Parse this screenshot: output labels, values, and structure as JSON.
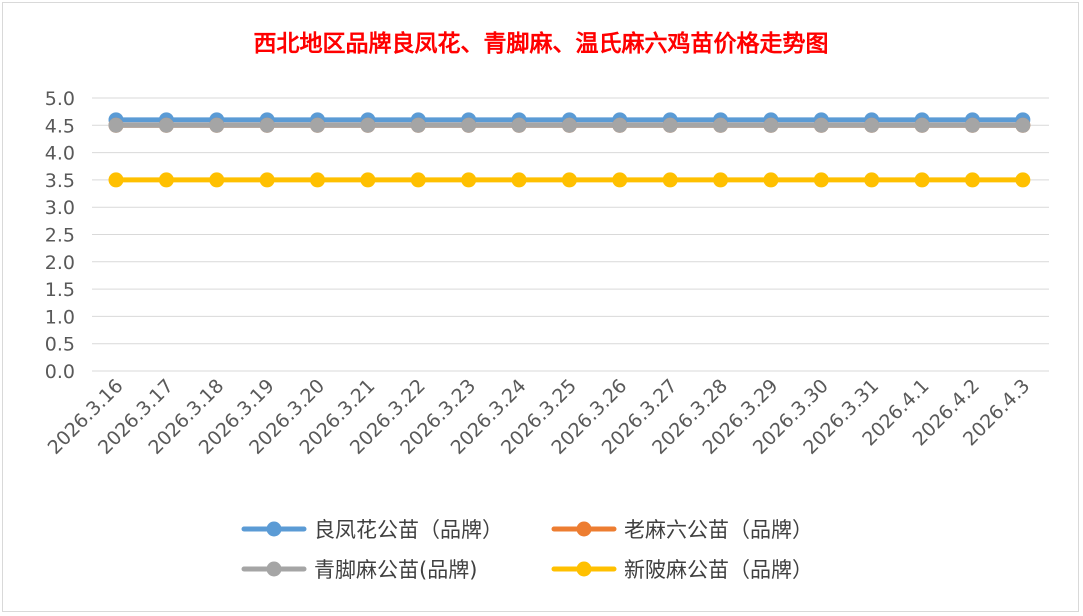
{
  "chart_data": {
    "type": "line",
    "title": "西北地区品牌良凤花、青脚麻、温氏麻六鸡苗价格走势图",
    "xlabel": "",
    "ylabel": "",
    "ylim": [
      0,
      5
    ],
    "ytick_labels": [
      "5.0",
      "4.5",
      "4.0",
      "3.5",
      "3.0",
      "2.5",
      "2.0",
      "1.5",
      "1.0",
      "0.5",
      "0.0"
    ],
    "grid": true,
    "legend_position": "bottom",
    "categories": [
      "2026.3.16",
      "2026.3.17",
      "2026.3.18",
      "2026.3.19",
      "2026.3.20",
      "2026.3.21",
      "2026.3.22",
      "2026.3.23",
      "2026.3.24",
      "2026.3.25",
      "2026.3.26",
      "2026.3.27",
      "2026.3.28",
      "2026.3.29",
      "2026.3.30",
      "2026.3.31",
      "2026.4.1",
      "2026.4.2",
      "2026.4.3"
    ],
    "series": [
      {
        "name": "良凤花公苗（品牌）",
        "color": "#5B9BD5",
        "values": [
          4.6,
          4.6,
          4.6,
          4.6,
          4.6,
          4.6,
          4.6,
          4.6,
          4.6,
          4.6,
          4.6,
          4.6,
          4.6,
          4.6,
          4.6,
          4.6,
          4.6,
          4.6,
          4.6
        ]
      },
      {
        "name": "老麻六公苗（品牌）",
        "color": "#ED7D31",
        "values": [
          4.5,
          4.5,
          4.5,
          4.5,
          4.5,
          4.5,
          4.5,
          4.5,
          4.5,
          4.5,
          4.5,
          4.5,
          4.5,
          4.5,
          4.5,
          4.5,
          4.5,
          4.5,
          4.5
        ]
      },
      {
        "name": "青脚麻公苗(品牌)",
        "color": "#A5A5A5",
        "values": [
          4.5,
          4.5,
          4.5,
          4.5,
          4.5,
          4.5,
          4.5,
          4.5,
          4.5,
          4.5,
          4.5,
          4.5,
          4.5,
          4.5,
          4.5,
          4.5,
          4.5,
          4.5,
          4.5
        ]
      },
      {
        "name": "新陂麻公苗（品牌）",
        "color": "#FFC000",
        "values": [
          3.5,
          3.5,
          3.5,
          3.5,
          3.5,
          3.5,
          3.5,
          3.5,
          3.5,
          3.5,
          3.5,
          3.5,
          3.5,
          3.5,
          3.5,
          3.5,
          3.5,
          3.5,
          3.5
        ]
      }
    ],
    "title_color": "#FF0000"
  }
}
